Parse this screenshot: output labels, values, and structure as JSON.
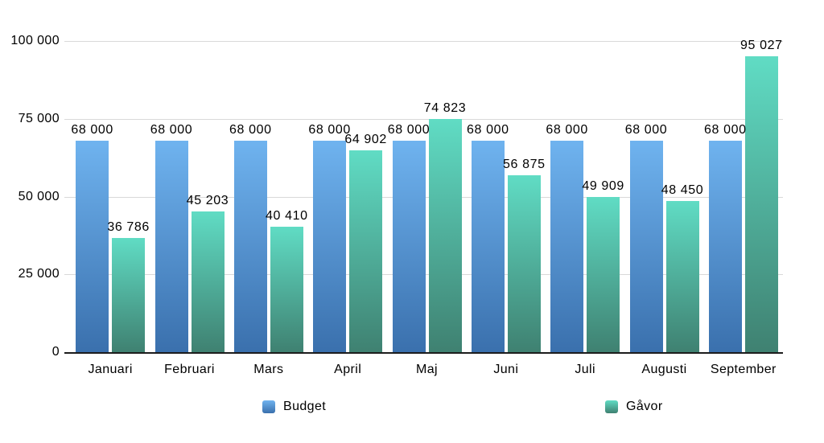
{
  "chart_data": {
    "type": "bar",
    "title": "",
    "xlabel": "",
    "ylabel": "",
    "categories": [
      "Januari",
      "Februari",
      "Mars",
      "April",
      "Maj",
      "Juni",
      "Juli",
      "Augusti",
      "September"
    ],
    "series": [
      {
        "name": "Budget",
        "values": [
          68000,
          68000,
          68000,
          68000,
          68000,
          68000,
          68000,
          68000,
          68000
        ],
        "labels": [
          "68 000",
          "68 000",
          "68 000",
          "68 000",
          "68 000",
          "68 000",
          "68 000",
          "68 000",
          "68 000"
        ],
        "color_top": "#6fb3ef",
        "color_bottom": "#3a70ad"
      },
      {
        "name": "Gåvor",
        "values": [
          36786,
          45203,
          40410,
          64902,
          74823,
          56875,
          49909,
          48450,
          95027
        ],
        "labels": [
          "36 786",
          "45 203",
          "40 410",
          "64 902",
          "74 823",
          "56 875",
          "49 909",
          "48 450",
          "95 027"
        ],
        "color_top": "#60dcc4",
        "color_bottom": "#3f8171"
      }
    ],
    "y_axis": {
      "min": 0,
      "max": 100000,
      "ticks": [
        {
          "value": 0,
          "label": "0"
        },
        {
          "value": 25000,
          "label": "25 000"
        },
        {
          "value": 50000,
          "label": "50 000"
        },
        {
          "value": 75000,
          "label": "75 000"
        },
        {
          "value": 100000,
          "label": "100 000"
        }
      ]
    },
    "grid": true,
    "legend_position": "bottom",
    "colors": {
      "gridline": "#d9d9d9",
      "axis_line": "#1c1c1c",
      "text": "#000000",
      "background": "#ffffff"
    }
  }
}
